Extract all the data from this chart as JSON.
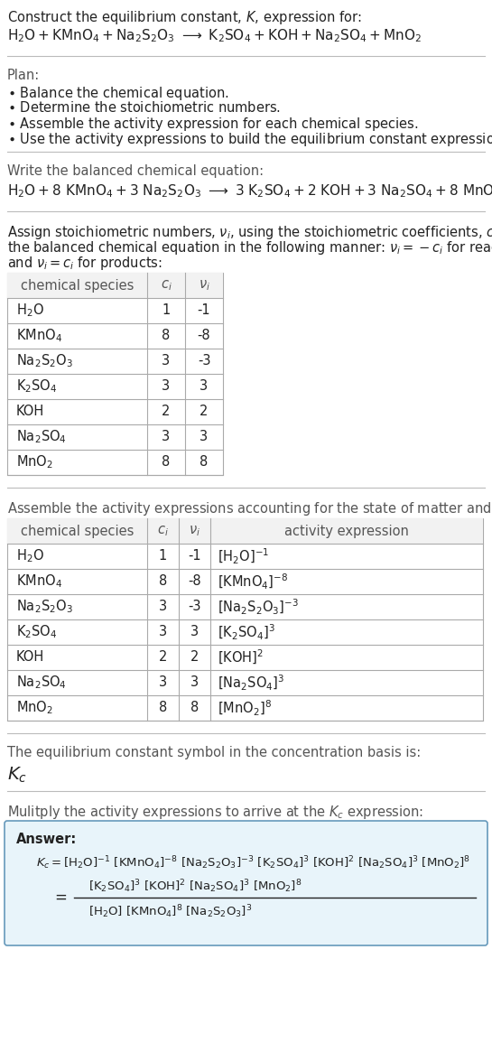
{
  "bg_color": "#ffffff",
  "text_color": "#222222",
  "gray_color": "#555555",
  "sep_color": "#bbbbbb",
  "table_border": "#aaaaaa",
  "answer_bg": "#e8f4fa",
  "answer_border": "#6699bb",
  "species": [
    "H_2O",
    "KMnO_4",
    "Na_2S_2O_3",
    "K_2SO_4",
    "KOH",
    "Na_2SO_4",
    "MnO_2"
  ],
  "ci": [
    "1",
    "8",
    "3",
    "3",
    "2",
    "3",
    "8"
  ],
  "nu_i": [
    "-1",
    "-8",
    "-3",
    "3",
    "2",
    "3",
    "8"
  ]
}
